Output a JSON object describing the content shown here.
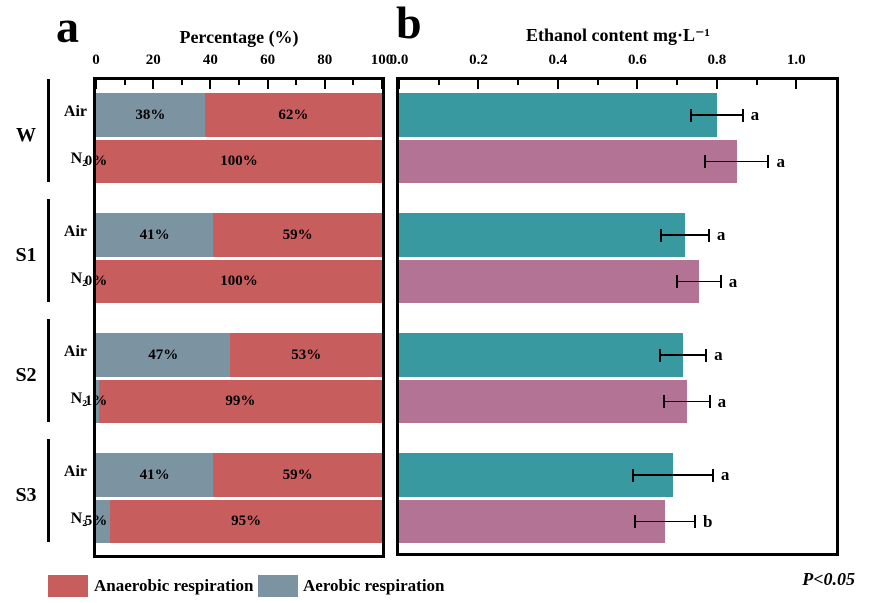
{
  "figure": {
    "panel_a_letter": "a",
    "panel_b_letter": "b",
    "p_value_note": "P<0.05"
  },
  "colors": {
    "anaerobic_red": "#C75D5D",
    "aerobic_gray": "#7C93A1",
    "air_teal": "#3999A0",
    "n2_mauve": "#B27394",
    "axis_black": "#000000"
  },
  "legend": [
    {
      "label": "Anaerobic respiration",
      "color": "#C75D5D"
    },
    {
      "label": "Aerobic respiration",
      "color": "#7C93A1"
    }
  ],
  "chart_data": [
    {
      "panel": "a",
      "type": "bar",
      "orientation": "horizontal",
      "stacked": true,
      "title": "Percentage (%)",
      "group_labels": [
        "W",
        "S1",
        "S2",
        "S3"
      ],
      "condition_labels": [
        "Air",
        "N₂"
      ],
      "categories": [
        "W Air",
        "W N₂",
        "S1 Air",
        "S1 N₂",
        "S2 Air",
        "S2 N₂",
        "S3 Air",
        "S3 N₂"
      ],
      "series": [
        {
          "name": "Aerobic respiration",
          "color": "#7C93A1",
          "values": [
            38,
            0,
            41,
            0,
            47,
            1,
            41,
            5
          ],
          "value_labels": [
            "38%",
            "0%",
            "41%",
            "0%",
            "47%",
            "1%",
            "41%",
            "5%"
          ]
        },
        {
          "name": "Anaerobic respiration",
          "color": "#C75D5D",
          "values": [
            62,
            100,
            59,
            100,
            53,
            99,
            59,
            95
          ],
          "value_labels": [
            "62%",
            "100%",
            "59%",
            "100%",
            "53%",
            "99%",
            "59%",
            "95%"
          ]
        }
      ],
      "xlim": [
        0,
        100
      ],
      "xticks": [
        0,
        20,
        40,
        60,
        80,
        100
      ],
      "xtick_labels": [
        "0",
        "20",
        "40",
        "60",
        "80",
        "100"
      ],
      "minor_xticks": [
        10,
        30,
        50,
        70,
        90
      ],
      "grid": false,
      "legend_position": "bottom"
    },
    {
      "panel": "b",
      "type": "bar",
      "orientation": "horizontal",
      "title": "Ethanol content mg·L⁻¹",
      "categories": [
        "W Air",
        "W N₂",
        "S1 Air",
        "S1 N₂",
        "S2 Air",
        "S2 N₂",
        "S3 Air",
        "S3 N₂"
      ],
      "values": [
        0.8,
        0.85,
        0.72,
        0.755,
        0.715,
        0.725,
        0.69,
        0.67
      ],
      "errors": [
        0.065,
        0.08,
        0.06,
        0.055,
        0.058,
        0.057,
        0.1,
        0.075
      ],
      "sig_letters": [
        "a",
        "a",
        "a",
        "a",
        "a",
        "a",
        "a",
        "b"
      ],
      "bar_colors": [
        "#3999A0",
        "#B27394",
        "#3999A0",
        "#B27394",
        "#3999A0",
        "#B27394",
        "#3999A0",
        "#B27394"
      ],
      "xlim": [
        0,
        1.1
      ],
      "xticks": [
        0,
        0.2,
        0.4,
        0.6,
        0.8,
        1.0
      ],
      "xtick_labels": [
        "0.0",
        "0.2",
        "0.4",
        "0.6",
        "0.8",
        "1.0"
      ],
      "minor_xticks": [
        0.1,
        0.3,
        0.5,
        0.7,
        0.9
      ],
      "grid": false
    }
  ]
}
